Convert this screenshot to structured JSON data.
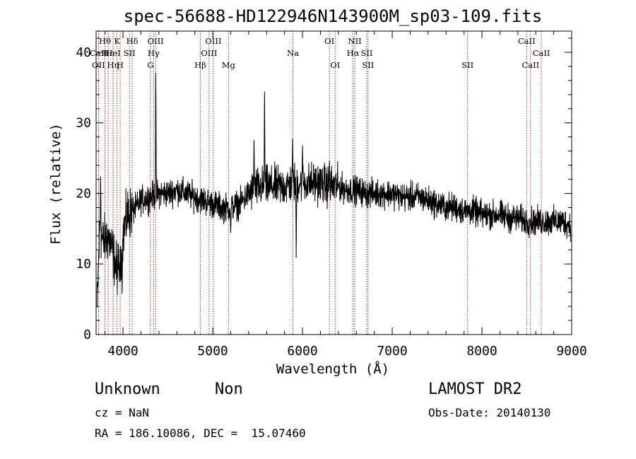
{
  "chart_data": {
    "type": "line",
    "title": "spec-56688-HD122946N143900M_sp03-109.fits",
    "xlabel": "Wavelength (Å)",
    "ylabel": "Flux (relative)",
    "xlim": [
      3700,
      9000
    ],
    "ylim": [
      0,
      43
    ],
    "x_ticks": [
      4000,
      5000,
      6000,
      7000,
      8000,
      9000
    ],
    "y_ticks": [
      0,
      10,
      20,
      30,
      40
    ],
    "grid": false,
    "line_color": "#000000",
    "marker_color": "#8b1a1a",
    "spectral_lines": [
      {
        "label": "Hθ",
        "wavelength": 3798,
        "row": 1
      },
      {
        "label": "CaII",
        "wavelength": 3727,
        "row": 2
      },
      {
        "label": "OII",
        "wavelength": 3727,
        "row": 3
      },
      {
        "label": "Hε",
        "wavelength": 3835,
        "row": 2
      },
      {
        "label": "Hη",
        "wavelength": 3889,
        "row": 3
      },
      {
        "label": "K",
        "wavelength": 3934,
        "row": 1
      },
      {
        "label": "HeI",
        "wavelength": 3889,
        "row": 2
      },
      {
        "label": "H",
        "wavelength": 3968,
        "row": 3
      },
      {
        "label": "SII",
        "wavelength": 4072,
        "row": 2
      },
      {
        "label": "Hδ",
        "wavelength": 4102,
        "row": 1
      },
      {
        "label": "OIII",
        "wavelength": 4363,
        "row": 1
      },
      {
        "label": "Hγ",
        "wavelength": 4340,
        "row": 2
      },
      {
        "label": "G",
        "wavelength": 4305,
        "row": 3
      },
      {
        "label": "Hβ",
        "wavelength": 4861,
        "row": 3
      },
      {
        "label": "OIII",
        "wavelength": 5007,
        "row": 1
      },
      {
        "label": "OIII",
        "wavelength": 4959,
        "row": 2
      },
      {
        "label": "Mg",
        "wavelength": 5175,
        "row": 3
      },
      {
        "label": "Na",
        "wavelength": 5893,
        "row": 2
      },
      {
        "label": "OI",
        "wavelength": 6300,
        "row": 1
      },
      {
        "label": "OI",
        "wavelength": 6364,
        "row": 3
      },
      {
        "label": "NII",
        "wavelength": 6583,
        "row": 1
      },
      {
        "label": "Hα",
        "wavelength": 6563,
        "row": 2
      },
      {
        "label": "SII",
        "wavelength": 6716,
        "row": 2
      },
      {
        "label": "SII",
        "wavelength": 6731,
        "row": 3
      },
      {
        "label": "SII",
        "wavelength": 7840,
        "row": 3
      },
      {
        "label": "CaII",
        "wavelength": 8498,
        "row": 1
      },
      {
        "label": "CaII",
        "wavelength": 8662,
        "row": 2
      },
      {
        "label": "CaII",
        "wavelength": 8542,
        "row": 3
      }
    ],
    "spectrum_anchors": [
      [
        3710,
        3.5
      ],
      [
        3740,
        15
      ],
      [
        3780,
        13
      ],
      [
        3830,
        14
      ],
      [
        3880,
        12
      ],
      [
        3930,
        9
      ],
      [
        3970,
        11
      ],
      [
        4000,
        14
      ],
      [
        4050,
        17
      ],
      [
        4100,
        17.5
      ],
      [
        4150,
        18
      ],
      [
        4200,
        19
      ],
      [
        4300,
        19.5
      ],
      [
        4400,
        20
      ],
      [
        4500,
        20
      ],
      [
        4600,
        20.5
      ],
      [
        4700,
        20
      ],
      [
        4800,
        19.5
      ],
      [
        4900,
        19
      ],
      [
        5000,
        18.5
      ],
      [
        5100,
        18
      ],
      [
        5200,
        18
      ],
      [
        5300,
        18.5
      ],
      [
        5400,
        20
      ],
      [
        5500,
        20.8
      ],
      [
        5600,
        21
      ],
      [
        5700,
        21
      ],
      [
        5800,
        21
      ],
      [
        5900,
        21.5
      ],
      [
        6000,
        21.5
      ],
      [
        6100,
        21.5
      ],
      [
        6200,
        21.5
      ],
      [
        6300,
        21
      ],
      [
        6400,
        21
      ],
      [
        6500,
        20.5
      ],
      [
        6600,
        20.5
      ],
      [
        6700,
        20
      ],
      [
        6800,
        20
      ],
      [
        6900,
        20
      ],
      [
        7000,
        20
      ],
      [
        7100,
        19.5
      ],
      [
        7200,
        19.5
      ],
      [
        7300,
        19.5
      ],
      [
        7400,
        19
      ],
      [
        7500,
        18.5
      ],
      [
        7600,
        18
      ],
      [
        7700,
        18
      ],
      [
        7800,
        17.5
      ],
      [
        7900,
        17.5
      ],
      [
        8000,
        17
      ],
      [
        8100,
        17
      ],
      [
        8200,
        17
      ],
      [
        8300,
        16.5
      ],
      [
        8400,
        16.5
      ],
      [
        8500,
        16
      ],
      [
        8600,
        16
      ],
      [
        8700,
        16
      ],
      [
        8800,
        16
      ],
      [
        8900,
        16
      ],
      [
        8990,
        15.5
      ]
    ],
    "spectrum_features": [
      {
        "x": 4365,
        "y": 39
      },
      {
        "x": 5577,
        "y": 36.5
      },
      {
        "x": 5460,
        "y": 29
      },
      {
        "x": 5890,
        "y": 28
      },
      {
        "x": 5930,
        "y": 10.5
      },
      {
        "x": 6300,
        "y": 25
      },
      {
        "x": 6000,
        "y": 27
      },
      {
        "x": 3990,
        "y": 5
      },
      {
        "x": 3960,
        "y": 7
      },
      {
        "x": 3750,
        "y": 23
      },
      {
        "x": 5200,
        "y": 14
      }
    ]
  },
  "footer": {
    "object_name": "Unknown",
    "object_class": "Non",
    "survey": "LAMOST DR2",
    "cz": "cz = NaN",
    "obs_date": "Obs-Date: 20140130",
    "coords": "RA = 186.10086, DEC =  15.07460"
  }
}
